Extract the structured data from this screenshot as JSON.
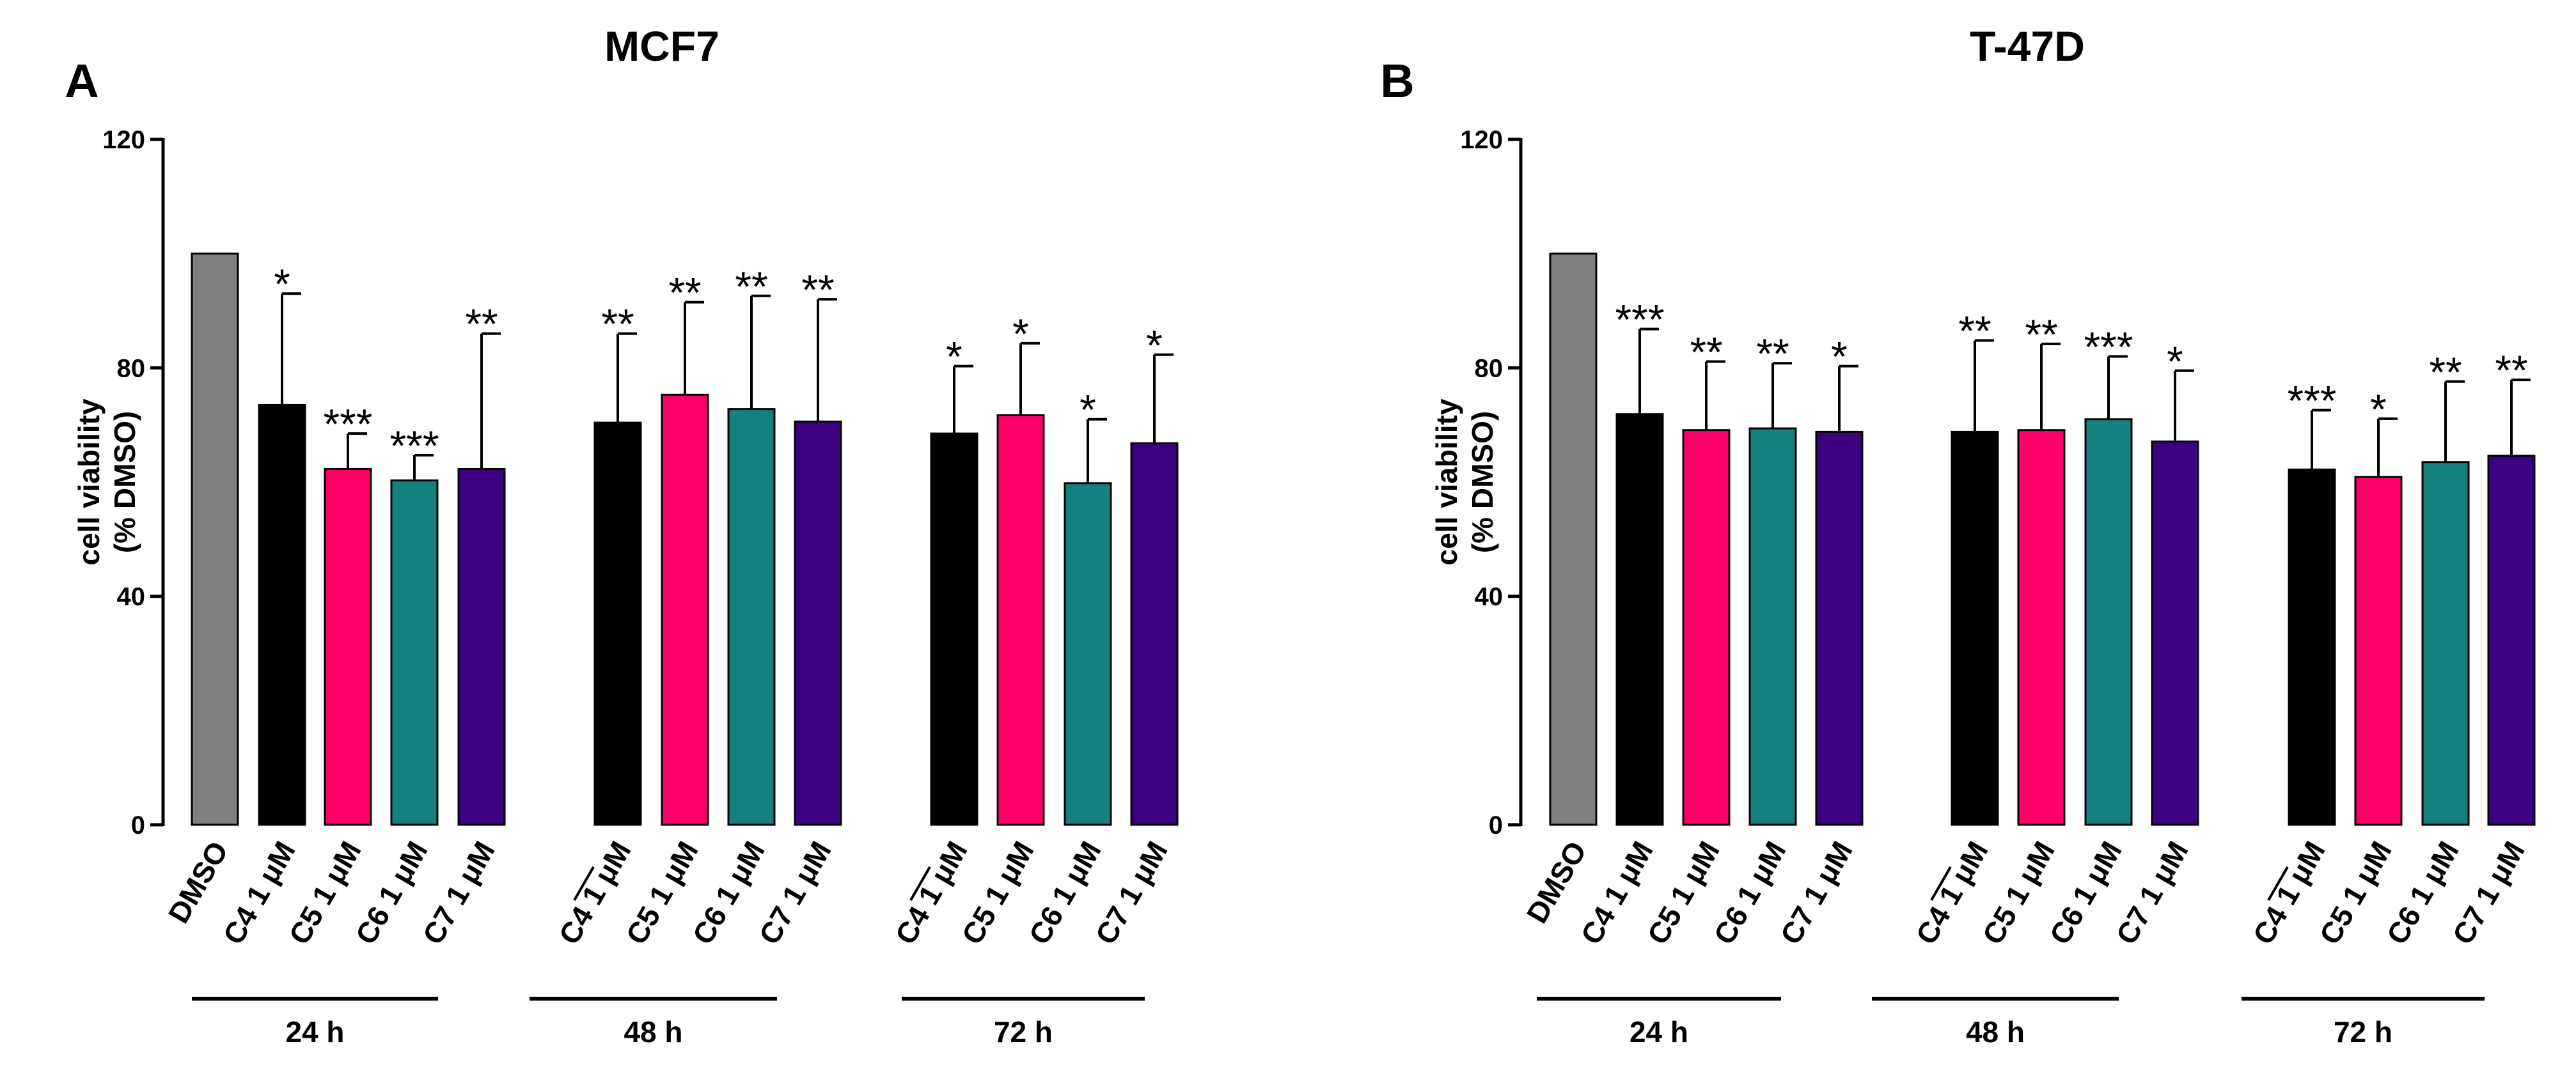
{
  "colors": {
    "DMSO": "#808080",
    "C4": "#000000",
    "C5": "#ff0066",
    "C6": "#168080",
    "C7": "#3d0080"
  },
  "chart_data": [
    {
      "type": "bar",
      "panel": "A",
      "title": "MCF7",
      "ylabel_line1": "cell viability",
      "ylabel_line2": "(% DMSO)",
      "xlabel": "",
      "ylim": [
        0,
        120
      ],
      "yticks": [
        "0",
        "40",
        "80",
        "120"
      ],
      "groups": [
        "24 h",
        "48 h",
        "72 h"
      ],
      "bars": [
        {
          "label": "DMSO",
          "color_key": "DMSO",
          "group": null,
          "value": 100,
          "error": 0,
          "sig": ""
        },
        {
          "label": "C4 1 μM",
          "color_key": "C4",
          "group": 0,
          "value": 73.5,
          "error": 19.5,
          "sig": "*"
        },
        {
          "label": "C5 1 μM",
          "color_key": "C5",
          "group": 0,
          "value": 62.3,
          "error": 6.2,
          "sig": "***"
        },
        {
          "label": "C6 1 μM",
          "color_key": "C6",
          "group": 0,
          "value": 60.3,
          "error": 4.4,
          "sig": "***"
        },
        {
          "label": "C7 1 μM",
          "color_key": "C7",
          "group": 0,
          "value": 62.3,
          "error": 23.7,
          "sig": "**"
        },
        {
          "label": "C4 1 μM",
          "color_key": "C4",
          "group": 1,
          "value": 70.4,
          "error": 15.6,
          "sig": "**"
        },
        {
          "label": "C5 1 μM",
          "color_key": "C5",
          "group": 1,
          "value": 75.3,
          "error": 16.2,
          "sig": "**"
        },
        {
          "label": "C6 1 μM",
          "color_key": "C6",
          "group": 1,
          "value": 72.8,
          "error": 19.8,
          "sig": "**"
        },
        {
          "label": "C7 1 μM",
          "color_key": "C7",
          "group": 1,
          "value": 70.6,
          "error": 21.4,
          "sig": "**"
        },
        {
          "label": "C4 1 μM",
          "color_key": "C4",
          "group": 2,
          "value": 68.5,
          "error": 11.8,
          "sig": "*"
        },
        {
          "label": "C5 1 μM",
          "color_key": "C5",
          "group": 2,
          "value": 71.7,
          "error": 12.6,
          "sig": "*"
        },
        {
          "label": "C6 1 μM",
          "color_key": "C6",
          "group": 2,
          "value": 59.8,
          "error": 11.2,
          "sig": "*"
        },
        {
          "label": "C7 1 μM",
          "color_key": "C7",
          "group": 2,
          "value": 66.8,
          "error": 15.5,
          "sig": "*"
        }
      ]
    },
    {
      "type": "bar",
      "panel": "B",
      "title": "T-47D",
      "ylabel_line1": "cell viability",
      "ylabel_line2": "(% DMSO)",
      "xlabel": "",
      "ylim": [
        0,
        120
      ],
      "yticks": [
        "0",
        "40",
        "80",
        "120"
      ],
      "groups": [
        "24 h",
        "48 h",
        "72 h"
      ],
      "bars": [
        {
          "label": "DMSO",
          "color_key": "DMSO",
          "group": null,
          "value": 100,
          "error": 0,
          "sig": ""
        },
        {
          "label": "C4 1 μM",
          "color_key": "C4",
          "group": 0,
          "value": 71.9,
          "error": 14.9,
          "sig": "***"
        },
        {
          "label": "C5 1 μM",
          "color_key": "C5",
          "group": 0,
          "value": 69.1,
          "error": 12.0,
          "sig": "**"
        },
        {
          "label": "C6 1 μM",
          "color_key": "C6",
          "group": 0,
          "value": 69.4,
          "error": 11.4,
          "sig": "**"
        },
        {
          "label": "C7 1 μM",
          "color_key": "C7",
          "group": 0,
          "value": 68.8,
          "error": 11.5,
          "sig": "*"
        },
        {
          "label": "C4 1 μM",
          "color_key": "C4",
          "group": 1,
          "value": 68.8,
          "error": 16.0,
          "sig": "**"
        },
        {
          "label": "C5 1 μM",
          "color_key": "C5",
          "group": 1,
          "value": 69.1,
          "error": 15.1,
          "sig": "**"
        },
        {
          "label": "C6 1 μM",
          "color_key": "C6",
          "group": 1,
          "value": 71.0,
          "error": 11.0,
          "sig": "***"
        },
        {
          "label": "C7 1 μM",
          "color_key": "C7",
          "group": 1,
          "value": 67.1,
          "error": 12.4,
          "sig": "*"
        },
        {
          "label": "C4 1 μM",
          "color_key": "C4",
          "group": 2,
          "value": 62.2,
          "error": 10.4,
          "sig": "***"
        },
        {
          "label": "C5 1 μM",
          "color_key": "C5",
          "group": 2,
          "value": 60.9,
          "error": 10.2,
          "sig": "*"
        },
        {
          "label": "C6 1 μM",
          "color_key": "C6",
          "group": 2,
          "value": 63.5,
          "error": 14.1,
          "sig": "**"
        },
        {
          "label": "C7 1 μM",
          "color_key": "C7",
          "group": 2,
          "value": 64.6,
          "error": 13.3,
          "sig": "**"
        }
      ]
    }
  ]
}
